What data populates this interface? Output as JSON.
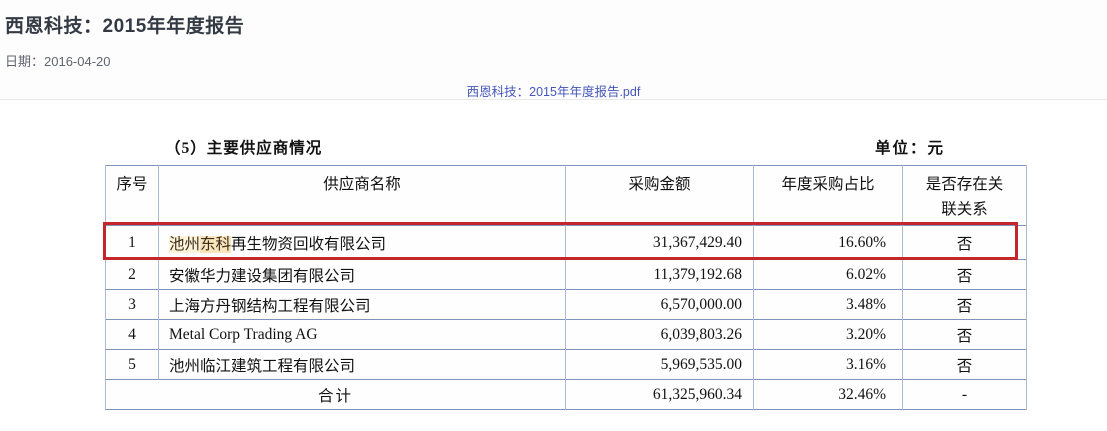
{
  "header": {
    "title": "西恩科技：2015年年度报告",
    "date": "日期：2016-04-20",
    "pdf_link": "西恩科技：2015年年度报告.pdf"
  },
  "section": {
    "caption": "（5）主要供应商情况",
    "unit": "单位：元"
  },
  "table": {
    "headers": [
      "序号",
      "供应商名称",
      "采购金额",
      "年度采购占比",
      "是否存在关联关系"
    ],
    "rows": [
      {
        "no": "1",
        "name_hl_a": "池州",
        "name_hl_b": "东科",
        "name_rest": "再生物资回收有限公司",
        "amount": "31,367,429.40",
        "ratio": "16.60%",
        "related": "否"
      },
      {
        "no": "2",
        "name": "安徽华力建设集团有限公司",
        "amount": "11,379,192.68",
        "ratio": "6.02%",
        "related": "否"
      },
      {
        "no": "3",
        "name": "上海方丹钢结构工程有限公司",
        "amount": "6,570,000.00",
        "ratio": "3.48%",
        "related": "否"
      },
      {
        "no": "4",
        "name": "Metal Corp Trading AG",
        "amount": "6,039,803.26",
        "ratio": "3.20%",
        "related": "否"
      },
      {
        "no": "5",
        "name": "池州临江建筑工程有限公司",
        "amount": "5,969,535.00",
        "ratio": "3.16%",
        "related": "否"
      }
    ],
    "total": {
      "label": "合计",
      "amount": "61,325,960.34",
      "ratio": "32.46%",
      "related": "-"
    }
  },
  "colors": {
    "link_blue": "#4456bb",
    "annotation_red": "#c4262c",
    "search_highlight_light": "#fdf3d8",
    "search_highlight_dark": "#f9e4bc",
    "table_border_horizontal": "#7e93ba",
    "table_border_vertical": "#abb9d4"
  }
}
